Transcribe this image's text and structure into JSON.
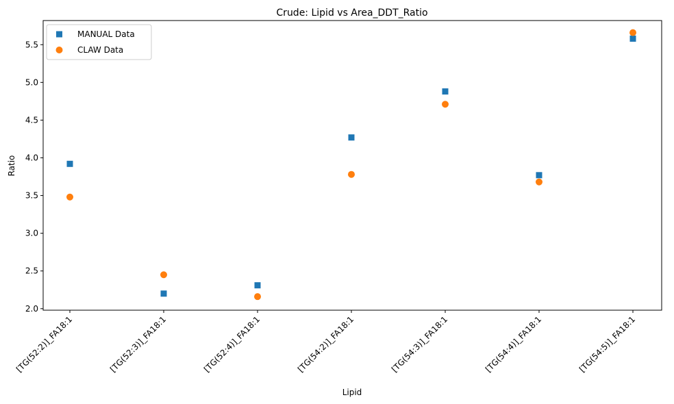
{
  "chart_data": {
    "type": "scatter",
    "title": "Crude: Lipid vs Area_DDT_Ratio",
    "xlabel": "Lipid",
    "ylabel": "Ratio",
    "categories": [
      "[TG(52:2)]_FA18:1",
      "[TG(52:3)]_FA18:1",
      "[TG(52:4)]_FA18:1",
      "[TG(54:2)]_FA18:1",
      "[TG(54:3)]_FA18:1",
      "[TG(54:4)]_FA18:1",
      "[TG(54:5)]_FA18:1"
    ],
    "series": [
      {
        "name": "MANUAL Data",
        "marker": "square",
        "color": "#1f77b4",
        "values": [
          3.92,
          2.2,
          2.31,
          4.27,
          4.88,
          3.77,
          5.58
        ]
      },
      {
        "name": "CLAW Data",
        "marker": "circle",
        "color": "#ff7f0e",
        "values": [
          3.48,
          2.45,
          2.16,
          3.78,
          4.71,
          3.68,
          5.66
        ]
      }
    ],
    "ylim": [
      1.98,
      5.82
    ],
    "yticks": [
      "2.0",
      "2.5",
      "3.0",
      "3.5",
      "4.0",
      "4.5",
      "5.0",
      "5.5"
    ],
    "legend_position": "top-left",
    "grid": false
  }
}
